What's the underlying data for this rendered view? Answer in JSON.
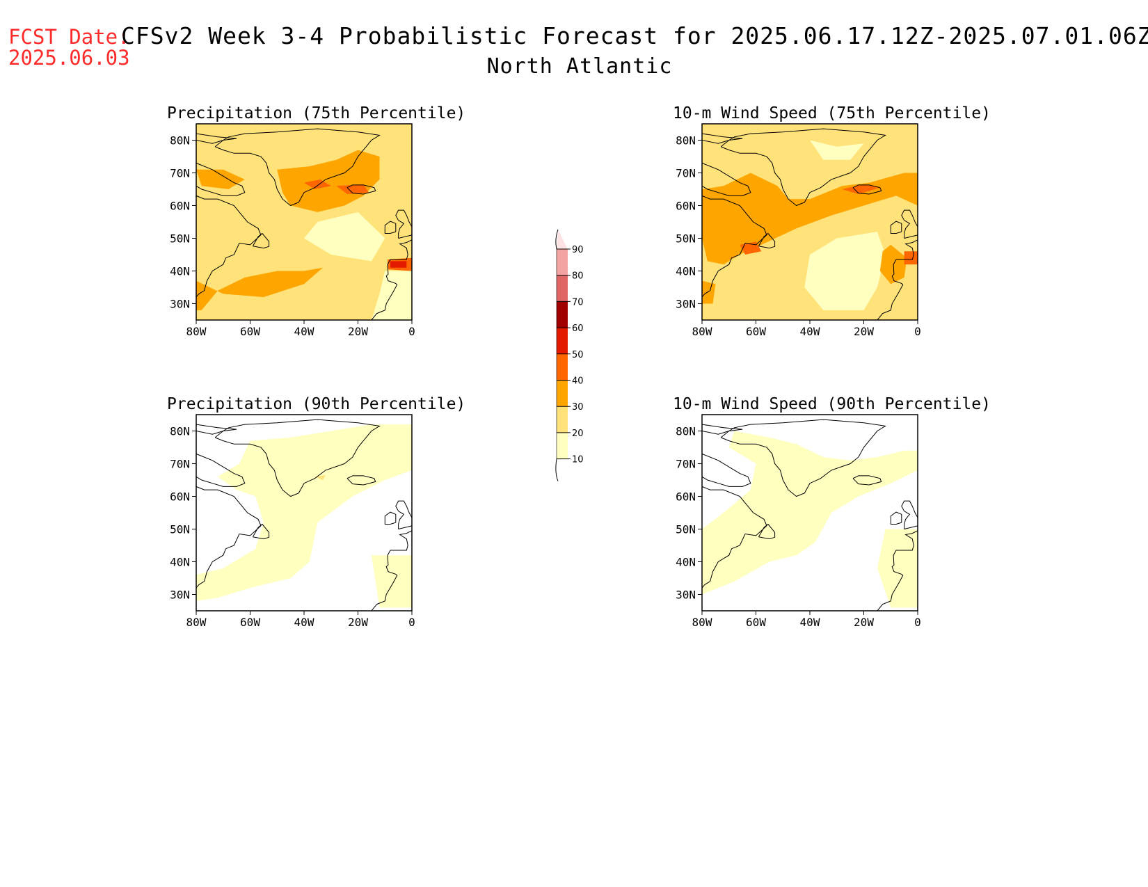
{
  "header": {
    "fcst_label": "FCST Date:",
    "fcst_date": "2025.06.03",
    "title": "CFSv2 Week 3-4 Probabilistic Forecast for 2025.06.17.12Z-2025.07.01.06Z",
    "region": "North Atlantic"
  },
  "axes": {
    "lat_ticks": [
      "80N",
      "70N",
      "60N",
      "50N",
      "40N",
      "30N"
    ],
    "lon_ticks": [
      "80W",
      "60W",
      "40W",
      "20W",
      "0"
    ]
  },
  "panels": [
    {
      "title": "Precipitation (75th Percentile)",
      "level": "high",
      "emphasis": "precip"
    },
    {
      "title": "10-m Wind Speed (75th Percentile)",
      "level": "high",
      "emphasis": "wind"
    },
    {
      "title": "Precipitation (90th Percentile)",
      "level": "low",
      "emphasis": "precip"
    },
    {
      "title": "10-m Wind Speed (90th Percentile)",
      "level": "low",
      "emphasis": "wind"
    }
  ],
  "colorbar": {
    "labels": [
      "90",
      "80",
      "70",
      "60",
      "50",
      "40",
      "30",
      "20",
      "10"
    ],
    "colors": [
      "#fde3e3",
      "#f4a3a3",
      "#e06666",
      "#a10000",
      "#e31a00",
      "#ff6600",
      "#ffa500",
      "#ffe37a",
      "#ffffc0"
    ]
  },
  "colors": {
    "fcst_label": "#ff2a2a",
    "prob_10_20": "#ffffc0",
    "prob_20_30": "#ffe37a",
    "prob_30_40": "#ffa500",
    "prob_40_50": "#ff6600",
    "prob_50_60": "#e31a00"
  }
}
